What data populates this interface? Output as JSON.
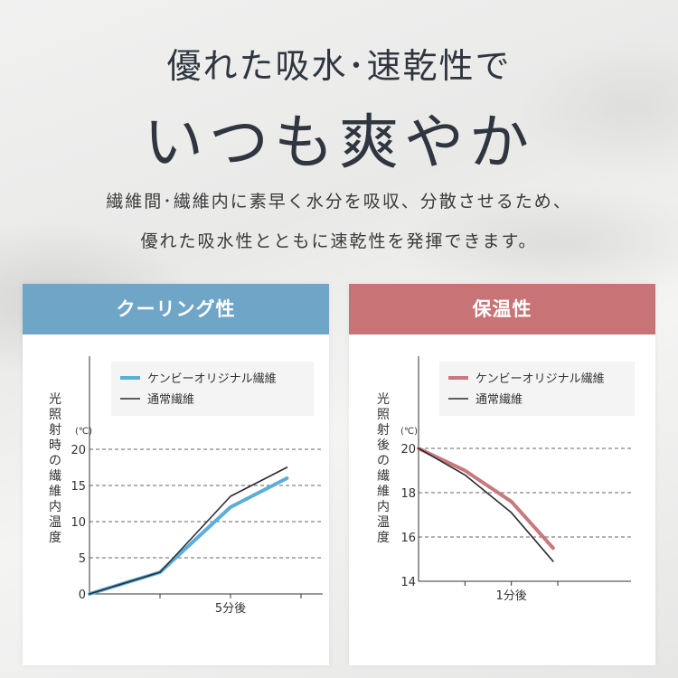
{
  "headline": {
    "line1": "優れた吸水･速乾性で",
    "line2": "いつも爽やか"
  },
  "description": {
    "line1": "繊維間･繊維内に素早く水分を吸収、分散させるため、",
    "line2": "優れた吸水性とともに速乾性を発揮できます。"
  },
  "colors": {
    "cooling": "#5aaed8",
    "warm": "#c8797b",
    "normal": "#2b2b35",
    "cooling_header": "#6fa5c6",
    "warm_header": "#c87375"
  },
  "chart_data": [
    {
      "type": "line",
      "title": "クーリング性",
      "ylabel": "光照射時の繊維内温度",
      "yunit": "(℃)",
      "ylim": [
        0,
        20
      ],
      "yticks": [
        0,
        5,
        10,
        15,
        20
      ],
      "xlim": [
        0,
        7.5
      ],
      "xtick_labels": [
        {
          "x": 5,
          "label": "5分後"
        }
      ],
      "grid": "dashed horizontal",
      "legend_position": "top-right",
      "series": [
        {
          "name": "ケンビーオリジナル繊維",
          "color": "#5aaed8",
          "points": [
            [
              0,
              0
            ],
            [
              2.5,
              3
            ],
            [
              5,
              12
            ],
            [
              7,
              16
            ]
          ]
        },
        {
          "name": "通常繊維",
          "color": "#2b2b35",
          "points": [
            [
              0,
              0
            ],
            [
              2.5,
              3
            ],
            [
              5,
              13.5
            ],
            [
              7,
              17.5
            ]
          ]
        }
      ]
    },
    {
      "type": "line",
      "title": "保温性",
      "ylabel": "光照射後の繊維内温度",
      "yunit": "(℃)",
      "ylim": [
        14,
        20
      ],
      "yticks": [
        14,
        16,
        18,
        20
      ],
      "xlim": [
        0,
        1.5
      ],
      "xtick_labels": [
        {
          "x": 1,
          "label": "1分後"
        }
      ],
      "grid": "dashed horizontal",
      "legend_position": "top-right",
      "series": [
        {
          "name": "ケンビーオリジナル繊維",
          "color": "#c8797b",
          "points": [
            [
              0,
              20
            ],
            [
              0.5,
              19
            ],
            [
              1,
              17.6
            ],
            [
              1.45,
              15.5
            ]
          ]
        },
        {
          "name": "通常繊維",
          "color": "#2b2b35",
          "points": [
            [
              0,
              20
            ],
            [
              0.5,
              18.8
            ],
            [
              1,
              17.1
            ],
            [
              1.45,
              14.9
            ]
          ]
        }
      ]
    }
  ]
}
